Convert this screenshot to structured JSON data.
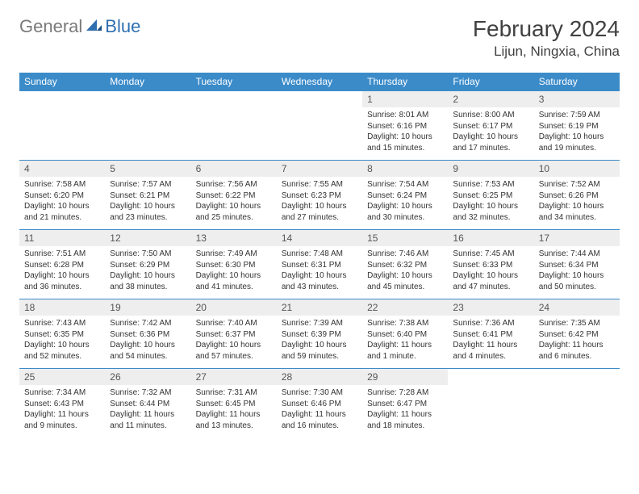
{
  "logo": {
    "text_general": "General",
    "text_blue": "Blue"
  },
  "title": "February 2024",
  "location": "Lijun, Ningxia, China",
  "colors": {
    "header_blue": "#3b8bc9",
    "daynum_bg": "#eeeeee",
    "text": "#333333",
    "title_text": "#414141",
    "logo_gray": "#7a7a7a",
    "logo_blue": "#2f6fb0"
  },
  "day_names": [
    "Sunday",
    "Monday",
    "Tuesday",
    "Wednesday",
    "Thursday",
    "Friday",
    "Saturday"
  ],
  "weeks": [
    [
      null,
      null,
      null,
      null,
      {
        "n": "1",
        "sunrise": "8:01 AM",
        "sunset": "6:16 PM",
        "daylight": "10 hours and 15 minutes."
      },
      {
        "n": "2",
        "sunrise": "8:00 AM",
        "sunset": "6:17 PM",
        "daylight": "10 hours and 17 minutes."
      },
      {
        "n": "3",
        "sunrise": "7:59 AM",
        "sunset": "6:19 PM",
        "daylight": "10 hours and 19 minutes."
      }
    ],
    [
      {
        "n": "4",
        "sunrise": "7:58 AM",
        "sunset": "6:20 PM",
        "daylight": "10 hours and 21 minutes."
      },
      {
        "n": "5",
        "sunrise": "7:57 AM",
        "sunset": "6:21 PM",
        "daylight": "10 hours and 23 minutes."
      },
      {
        "n": "6",
        "sunrise": "7:56 AM",
        "sunset": "6:22 PM",
        "daylight": "10 hours and 25 minutes."
      },
      {
        "n": "7",
        "sunrise": "7:55 AM",
        "sunset": "6:23 PM",
        "daylight": "10 hours and 27 minutes."
      },
      {
        "n": "8",
        "sunrise": "7:54 AM",
        "sunset": "6:24 PM",
        "daylight": "10 hours and 30 minutes."
      },
      {
        "n": "9",
        "sunrise": "7:53 AM",
        "sunset": "6:25 PM",
        "daylight": "10 hours and 32 minutes."
      },
      {
        "n": "10",
        "sunrise": "7:52 AM",
        "sunset": "6:26 PM",
        "daylight": "10 hours and 34 minutes."
      }
    ],
    [
      {
        "n": "11",
        "sunrise": "7:51 AM",
        "sunset": "6:28 PM",
        "daylight": "10 hours and 36 minutes."
      },
      {
        "n": "12",
        "sunrise": "7:50 AM",
        "sunset": "6:29 PM",
        "daylight": "10 hours and 38 minutes."
      },
      {
        "n": "13",
        "sunrise": "7:49 AM",
        "sunset": "6:30 PM",
        "daylight": "10 hours and 41 minutes."
      },
      {
        "n": "14",
        "sunrise": "7:48 AM",
        "sunset": "6:31 PM",
        "daylight": "10 hours and 43 minutes."
      },
      {
        "n": "15",
        "sunrise": "7:46 AM",
        "sunset": "6:32 PM",
        "daylight": "10 hours and 45 minutes."
      },
      {
        "n": "16",
        "sunrise": "7:45 AM",
        "sunset": "6:33 PM",
        "daylight": "10 hours and 47 minutes."
      },
      {
        "n": "17",
        "sunrise": "7:44 AM",
        "sunset": "6:34 PM",
        "daylight": "10 hours and 50 minutes."
      }
    ],
    [
      {
        "n": "18",
        "sunrise": "7:43 AM",
        "sunset": "6:35 PM",
        "daylight": "10 hours and 52 minutes."
      },
      {
        "n": "19",
        "sunrise": "7:42 AM",
        "sunset": "6:36 PM",
        "daylight": "10 hours and 54 minutes."
      },
      {
        "n": "20",
        "sunrise": "7:40 AM",
        "sunset": "6:37 PM",
        "daylight": "10 hours and 57 minutes."
      },
      {
        "n": "21",
        "sunrise": "7:39 AM",
        "sunset": "6:39 PM",
        "daylight": "10 hours and 59 minutes."
      },
      {
        "n": "22",
        "sunrise": "7:38 AM",
        "sunset": "6:40 PM",
        "daylight": "11 hours and 1 minute."
      },
      {
        "n": "23",
        "sunrise": "7:36 AM",
        "sunset": "6:41 PM",
        "daylight": "11 hours and 4 minutes."
      },
      {
        "n": "24",
        "sunrise": "7:35 AM",
        "sunset": "6:42 PM",
        "daylight": "11 hours and 6 minutes."
      }
    ],
    [
      {
        "n": "25",
        "sunrise": "7:34 AM",
        "sunset": "6:43 PM",
        "daylight": "11 hours and 9 minutes."
      },
      {
        "n": "26",
        "sunrise": "7:32 AM",
        "sunset": "6:44 PM",
        "daylight": "11 hours and 11 minutes."
      },
      {
        "n": "27",
        "sunrise": "7:31 AM",
        "sunset": "6:45 PM",
        "daylight": "11 hours and 13 minutes."
      },
      {
        "n": "28",
        "sunrise": "7:30 AM",
        "sunset": "6:46 PM",
        "daylight": "11 hours and 16 minutes."
      },
      {
        "n": "29",
        "sunrise": "7:28 AM",
        "sunset": "6:47 PM",
        "daylight": "11 hours and 18 minutes."
      },
      null,
      null
    ]
  ],
  "labels": {
    "sunrise": "Sunrise:",
    "sunset": "Sunset:",
    "daylight": "Daylight:"
  }
}
